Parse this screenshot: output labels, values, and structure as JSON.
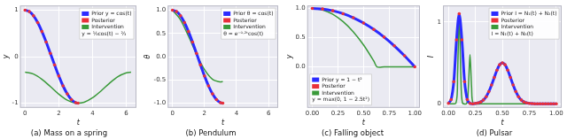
{
  "chart_data": [
    {
      "type": "line",
      "title": "(a) Mass on a spring",
      "xlabel": "t",
      "ylabel": "y",
      "xlim": [
        -0.3,
        6.6
      ],
      "xticks": [
        0,
        2,
        4,
        6
      ],
      "ylim": [
        -1.1,
        1.1
      ],
      "yticks": [
        -1,
        0,
        1
      ],
      "grid": true,
      "legend": "upper right",
      "annotation": "y = ⅓cos(t) − ⅔",
      "series": [
        {
          "name": "Prior y = cos(t)",
          "color": "#2b2bff",
          "line_style": "solid",
          "marker": "none",
          "x": [
            0,
            0.25,
            0.5,
            0.75,
            1,
            1.25,
            1.5,
            1.75,
            2,
            2.25,
            2.5,
            2.75,
            3,
            3.14
          ],
          "values": [
            1,
            0.969,
            0.878,
            0.732,
            0.54,
            0.315,
            0.071,
            -0.178,
            -0.416,
            -0.628,
            -0.801,
            -0.924,
            -0.99,
            -1
          ]
        },
        {
          "name": "Posterior",
          "color": "#e8303a",
          "line_style": "none",
          "marker": "circle",
          "x": [
            0,
            0.25,
            0.5,
            0.75,
            1,
            1.25,
            1.5,
            1.75,
            2,
            2.25,
            2.5,
            2.75,
            3,
            3.14
          ],
          "values": [
            1,
            0.969,
            0.878,
            0.732,
            0.54,
            0.315,
            0.071,
            -0.178,
            -0.416,
            -0.628,
            -0.801,
            -0.924,
            -0.99,
            -1
          ]
        },
        {
          "name": "Intervention",
          "color": "#3a9a3a",
          "line_style": "solid",
          "marker": "none",
          "x": [
            0,
            0.5,
            1,
            1.5,
            2,
            2.5,
            3,
            3.5,
            4,
            4.5,
            5,
            5.5,
            6,
            6.28
          ],
          "values": [
            -0.333,
            -0.374,
            -0.487,
            -0.643,
            -0.805,
            -0.934,
            -0.997,
            -0.979,
            -0.884,
            -0.737,
            -0.572,
            -0.429,
            -0.347,
            -0.333
          ]
        }
      ]
    },
    {
      "type": "line",
      "title": "(b) Pendulum",
      "xlabel": "t",
      "ylabel": "θ",
      "xlim": [
        -0.3,
        6.6
      ],
      "xticks": [
        0,
        2,
        4,
        6
      ],
      "ylim": [
        -1.1,
        1.1
      ],
      "yticks": [
        {
          "value": -1,
          "label": "-1.0"
        },
        {
          "value": -0.5,
          "label": "-0.5"
        },
        {
          "value": 0,
          "label": "0.0"
        },
        {
          "value": 0.5,
          "label": "0.5"
        },
        {
          "value": 1,
          "label": "1.0"
        }
      ],
      "grid": true,
      "legend": "upper right",
      "annotation": "θ = e⁻⁰·²ᵗcos(t)",
      "series": [
        {
          "name": "Prior θ = cos(t)",
          "color": "#2b2bff",
          "line_style": "solid",
          "marker": "none",
          "x": [
            0,
            0.25,
            0.5,
            0.75,
            1,
            1.25,
            1.5,
            1.75,
            2,
            2.25,
            2.5,
            2.75,
            3,
            3.14
          ],
          "values": [
            1,
            0.969,
            0.878,
            0.732,
            0.54,
            0.315,
            0.071,
            -0.178,
            -0.416,
            -0.628,
            -0.801,
            -0.924,
            -0.99,
            -1
          ]
        },
        {
          "name": "Posterior",
          "color": "#e8303a",
          "line_style": "none",
          "marker": "circle",
          "x": [
            0,
            0.25,
            0.5,
            0.75,
            1,
            1.25,
            1.5,
            1.75,
            2,
            2.25,
            2.5,
            2.75,
            3,
            3.14
          ],
          "values": [
            1,
            0.969,
            0.878,
            0.732,
            0.54,
            0.315,
            0.071,
            -0.178,
            -0.416,
            -0.628,
            -0.801,
            -0.924,
            -0.99,
            -1
          ]
        },
        {
          "name": "Intervention",
          "color": "#3a9a3a",
          "line_style": "solid",
          "marker": "none",
          "x": [
            0,
            0.5,
            1,
            1.5,
            2,
            2.5,
            3,
            3.14
          ],
          "values": [
            1,
            0.794,
            0.442,
            0.052,
            -0.279,
            -0.486,
            -0.544,
            -0.534
          ]
        }
      ]
    },
    {
      "type": "line",
      "title": "(c) Falling object",
      "xlabel": "t",
      "ylabel": "y",
      "xlim": [
        -0.05,
        1.05
      ],
      "xticks": [
        {
          "value": 0,
          "label": "0.00"
        },
        {
          "value": 0.25,
          "label": "0.25"
        },
        {
          "value": 0.5,
          "label": "0.50"
        },
        {
          "value": 0.75,
          "label": "0.75"
        },
        {
          "value": 1,
          "label": "1.00"
        }
      ],
      "ylim": [
        -0.7,
        1.05
      ],
      "yticks": [
        {
          "value": 0,
          "label": "0.0"
        },
        {
          "value": 0.5,
          "label": "0.5"
        },
        {
          "value": 1,
          "label": "1.0"
        }
      ],
      "grid": true,
      "legend": "lower left",
      "annotation": "y = max(0, 1 − 2.5t²)",
      "series": [
        {
          "name": "Prior y = 1 − t²",
          "color": "#2b2bff",
          "line_style": "solid",
          "marker": "none",
          "x": [
            0,
            0.1,
            0.2,
            0.3,
            0.4,
            0.5,
            0.6,
            0.7,
            0.8,
            0.9,
            1
          ],
          "values": [
            1,
            0.99,
            0.96,
            0.91,
            0.84,
            0.75,
            0.64,
            0.51,
            0.36,
            0.19,
            0
          ]
        },
        {
          "name": "Posterior",
          "color": "#e8303a",
          "line_style": "none",
          "marker": "circle",
          "x": [
            0,
            0.1,
            0.2,
            0.3,
            0.4,
            0.5,
            0.6,
            0.7,
            0.8,
            0.9,
            1
          ],
          "values": [
            1,
            0.99,
            0.96,
            0.91,
            0.84,
            0.75,
            0.64,
            0.51,
            0.36,
            0.19,
            0
          ]
        },
        {
          "name": "Intervention",
          "color": "#3a9a3a",
          "line_style": "solid",
          "marker": "none",
          "x": [
            0,
            0.1,
            0.2,
            0.3,
            0.4,
            0.5,
            0.6,
            0.632,
            0.7,
            0.8,
            0.9,
            1
          ],
          "values": [
            1,
            0.975,
            0.9,
            0.775,
            0.6,
            0.375,
            0.1,
            0,
            0,
            0,
            0,
            0
          ]
        }
      ]
    },
    {
      "type": "line",
      "title": "(d) Pulsar",
      "xlabel": "t",
      "ylabel": "I",
      "xlim": [
        -0.05,
        1.05
      ],
      "xticks": [
        {
          "value": 0,
          "label": "0.00"
        },
        {
          "value": 0.25,
          "label": "0.25"
        },
        {
          "value": 0.5,
          "label": "0.50"
        },
        {
          "value": 0.75,
          "label": "0.75"
        },
        {
          "value": 1,
          "label": "1.00"
        }
      ],
      "ylim": [
        -0.05,
        1.2
      ],
      "yticks": [
        0,
        1
      ],
      "grid": true,
      "legend": "upper right",
      "annotation": "I = N₁(t) + N₃(t)",
      "series": [
        {
          "name": "Prior I = N₁(t) + N₂(t)",
          "color": "#2b2bff",
          "line_style": "solid",
          "marker": "none",
          "x": [
            0,
            0.025,
            0.05,
            0.075,
            0.1,
            0.125,
            0.15,
            0.175,
            0.2,
            0.225,
            0.25,
            0.275,
            0.3,
            0.325,
            0.35,
            0.375,
            0.4,
            0.425,
            0.45,
            0.475,
            0.5,
            0.525,
            0.55,
            0.575,
            0.6,
            0.625,
            0.65,
            0.675,
            0.7,
            0.725,
            0.75,
            0.775,
            0.8,
            0.825,
            0.85,
            0.875,
            0.9,
            0.925,
            0.95,
            0.975,
            1
          ],
          "values": [
            0.005,
            0.05,
            0.27,
            0.78,
            1.1,
            0.78,
            0.27,
            0.05,
            0.005,
            0,
            0.004,
            0.01,
            0.022,
            0.046,
            0.086,
            0.148,
            0.229,
            0.32,
            0.41,
            0.476,
            0.5,
            0.476,
            0.41,
            0.32,
            0.229,
            0.148,
            0.086,
            0.046,
            0.022,
            0.01,
            0.004,
            0.002,
            0,
            0,
            0,
            0,
            0,
            0,
            0,
            0,
            0
          ]
        },
        {
          "name": "Posterior",
          "color": "#e8303a",
          "line_style": "none",
          "marker": "circle",
          "x": [
            0,
            0.025,
            0.05,
            0.075,
            0.1,
            0.125,
            0.15,
            0.175,
            0.2,
            0.225,
            0.25,
            0.275,
            0.3,
            0.325,
            0.35,
            0.375,
            0.4,
            0.425,
            0.45,
            0.475,
            0.5,
            0.525,
            0.55,
            0.575,
            0.6,
            0.625,
            0.65,
            0.675,
            0.7,
            0.725,
            0.75,
            0.775,
            0.8,
            0.825,
            0.85,
            0.875,
            0.9,
            0.925,
            0.95,
            0.975,
            1
          ],
          "values": [
            0.005,
            0.05,
            0.27,
            0.78,
            1.1,
            0.78,
            0.27,
            0.05,
            0.005,
            0,
            0.004,
            0.01,
            0.022,
            0.046,
            0.086,
            0.148,
            0.229,
            0.32,
            0.41,
            0.476,
            0.5,
            0.476,
            0.41,
            0.32,
            0.229,
            0.148,
            0.086,
            0.046,
            0.022,
            0.01,
            0.004,
            0.002,
            0,
            0,
            0,
            0,
            0,
            0,
            0,
            0,
            0
          ]
        },
        {
          "name": "Intervention",
          "color": "#3a9a3a",
          "line_style": "solid",
          "marker": "none",
          "x": [
            0,
            0.07,
            0.085,
            0.1,
            0.115,
            0.13,
            0.17,
            0.185,
            0.2,
            0.215,
            0.23,
            0.3,
            0.5,
            1
          ],
          "values": [
            0,
            0.01,
            0.36,
            1.1,
            0.36,
            0.01,
            0.005,
            0.2,
            0.6,
            0.2,
            0.005,
            0,
            0,
            0
          ]
        }
      ]
    }
  ]
}
